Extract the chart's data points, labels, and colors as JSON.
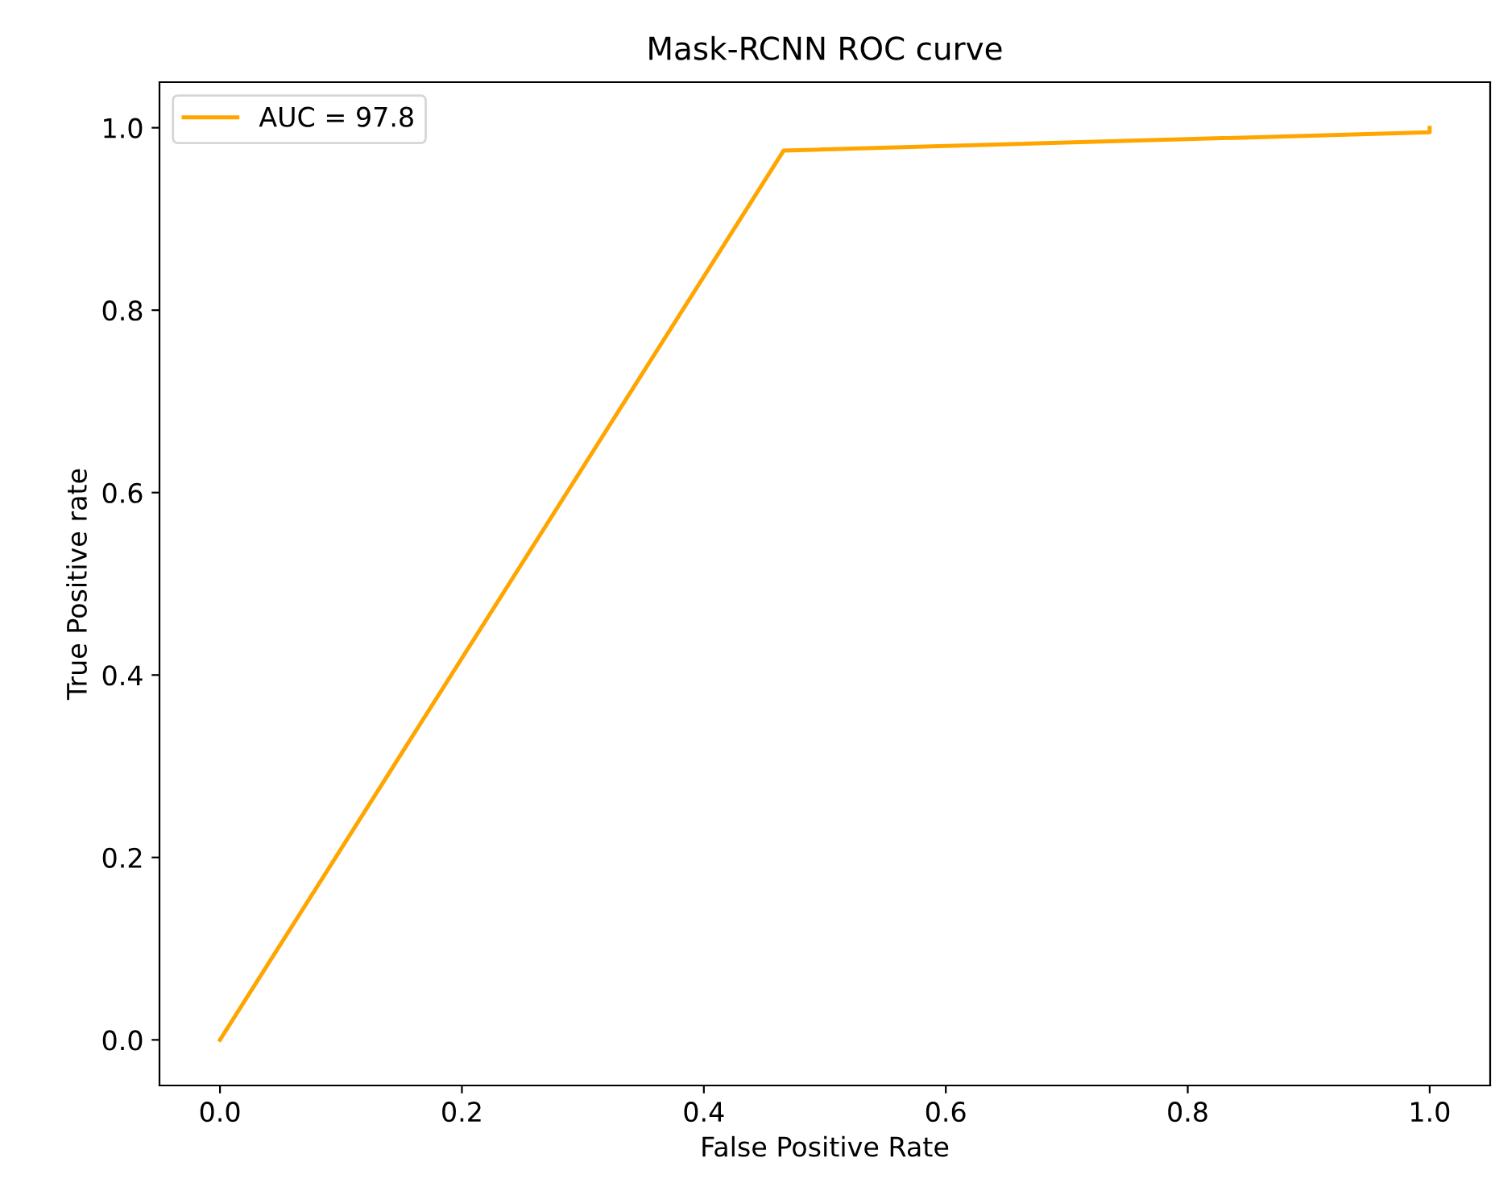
{
  "chart_data": {
    "type": "line",
    "title": "Mask-RCNN ROC curve",
    "xlabel": "False Positive Rate",
    "ylabel": "True Positive rate",
    "series": [
      {
        "name": "AUC = 97.8",
        "color": "#ffa500",
        "x": [
          0,
          0.466,
          1.0,
          1.0
        ],
        "values": [
          0,
          0.975,
          0.995,
          1.0
        ]
      }
    ],
    "xlim": [
      -0.05,
      1.05
    ],
    "ylim": [
      -0.05,
      1.05
    ],
    "xticks": [
      {
        "value": 0,
        "label": "0.0"
      },
      0.2,
      0.4,
      0.6,
      0.8,
      {
        "value": 1,
        "label": "1.0"
      }
    ],
    "yticks": [
      {
        "value": 0,
        "label": "0.0"
      },
      0.2,
      0.4,
      0.6,
      0.8,
      {
        "value": 1,
        "label": "1.0"
      }
    ],
    "grid": false,
    "legend": "top left",
    "marker": "none",
    "line_style": "solid"
  }
}
